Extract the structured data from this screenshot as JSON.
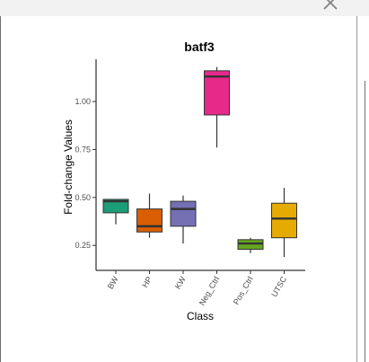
{
  "chart_data": {
    "type": "box",
    "title": "batf3",
    "xlabel": "Class",
    "ylabel": "Fold-change Values",
    "ylim": [
      0.12,
      1.22
    ],
    "yticks": [
      0.25,
      0.5,
      0.75,
      1.0
    ],
    "ytick_labels": [
      "0.25",
      "0.50",
      "0.75",
      "1.00"
    ],
    "grid": false,
    "legend": "none",
    "categories": [
      "BW",
      "HP",
      "KW",
      "Neg_Ctrl",
      "Pos_Ctrl",
      "UTSC"
    ],
    "boxes": [
      {
        "category": "BW",
        "whisker_low": 0.36,
        "q1": 0.42,
        "median": 0.48,
        "q3": 0.49,
        "whisker_high": 0.49,
        "color": "#1b9e77"
      },
      {
        "category": "HP",
        "whisker_low": 0.29,
        "q1": 0.32,
        "median": 0.35,
        "q3": 0.44,
        "whisker_high": 0.52,
        "color": "#d95f02"
      },
      {
        "category": "KW",
        "whisker_low": 0.26,
        "q1": 0.35,
        "median": 0.44,
        "q3": 0.48,
        "whisker_high": 0.51,
        "color": "#7570b3"
      },
      {
        "category": "Neg_Ctrl",
        "whisker_low": 0.76,
        "q1": 0.93,
        "median": 1.13,
        "q3": 1.16,
        "whisker_high": 1.18,
        "color": "#e7298a"
      },
      {
        "category": "Pos_Ctrl",
        "whisker_low": 0.21,
        "q1": 0.23,
        "median": 0.26,
        "q3": 0.28,
        "whisker_high": 0.29,
        "color": "#66a61e"
      },
      {
        "category": "UTSC",
        "whisker_low": 0.19,
        "q1": 0.29,
        "median": 0.39,
        "q3": 0.47,
        "whisker_high": 0.55,
        "color": "#e6ab02"
      }
    ]
  }
}
